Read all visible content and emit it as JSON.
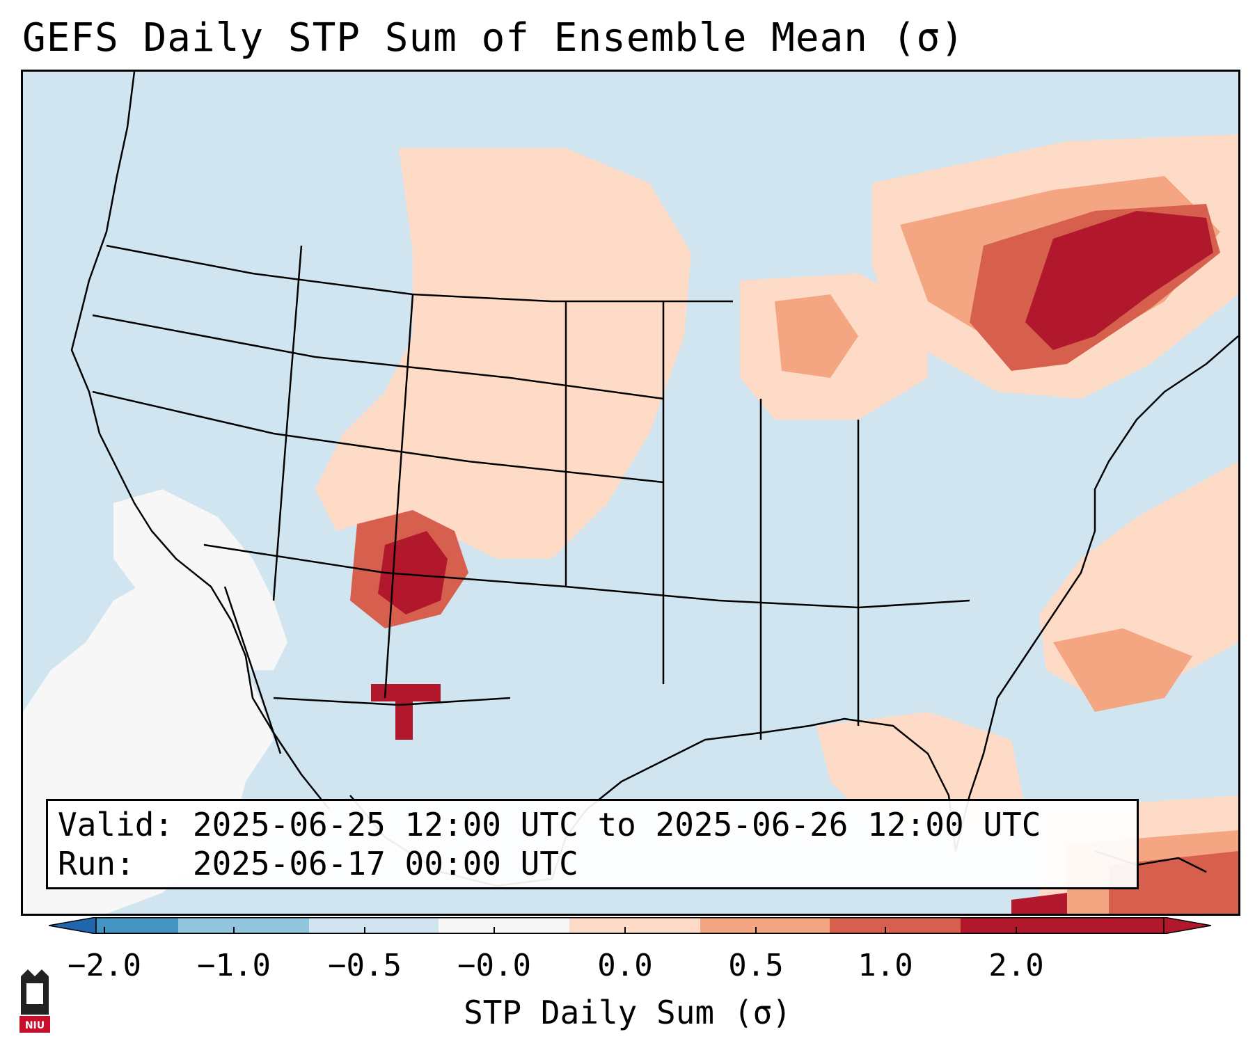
{
  "title": "GEFS Daily STP Sum of Ensemble Mean (σ)",
  "info": {
    "valid_label": "Valid:",
    "valid_value": "2025-06-25 12:00 UTC to 2025-06-26 12:00 UTC",
    "run_label": "Run:",
    "run_value": "2025-06-17 00:00 UTC"
  },
  "colorbar": {
    "title": "STP Daily Sum (σ)",
    "tick_labels": [
      "−2.0",
      "−1.0",
      "−0.5",
      "−0.0",
      "0.0",
      "0.5",
      "1.0",
      "2.0"
    ],
    "bins": [
      {
        "label": "<-2.0",
        "color": "#2166ac"
      },
      {
        "label": "-2.0 to -1.0",
        "color": "#4393c3"
      },
      {
        "label": "-1.0 to -0.5",
        "color": "#92c5de"
      },
      {
        "label": "-0.5 to 0.0",
        "color": "#d1e5f0"
      },
      {
        "label": "0.0 to 0.0",
        "color": "#f7f7f7"
      },
      {
        "label": "0.0 to 0.5",
        "color": "#fddbc7"
      },
      {
        "label": "0.5 to 1.0",
        "color": "#f4a582"
      },
      {
        "label": "1.0 to 2.0",
        "color": "#d6604d"
      },
      {
        "label": ">2.0",
        "color": "#b2182b"
      }
    ]
  },
  "map": {
    "background_color": "#d1e5f0",
    "regions": [
      {
        "name": "great-basin-neutral",
        "category": "0.0"
      },
      {
        "name": "pacific-neutral",
        "category": "0.0"
      },
      {
        "name": "northern-plains-light",
        "category": "0.0-0.5"
      },
      {
        "name": "northeast-high",
        "category": ">2.0"
      },
      {
        "name": "four-corners-high",
        "category": ">2.0"
      },
      {
        "name": "atlantic-light",
        "category": "0.0-0.5"
      },
      {
        "name": "gulf-light",
        "category": "0.0-0.5"
      },
      {
        "name": "caribbean-high",
        "category": "1.0-2.0"
      }
    ]
  },
  "logo": {
    "text": "NIU"
  }
}
